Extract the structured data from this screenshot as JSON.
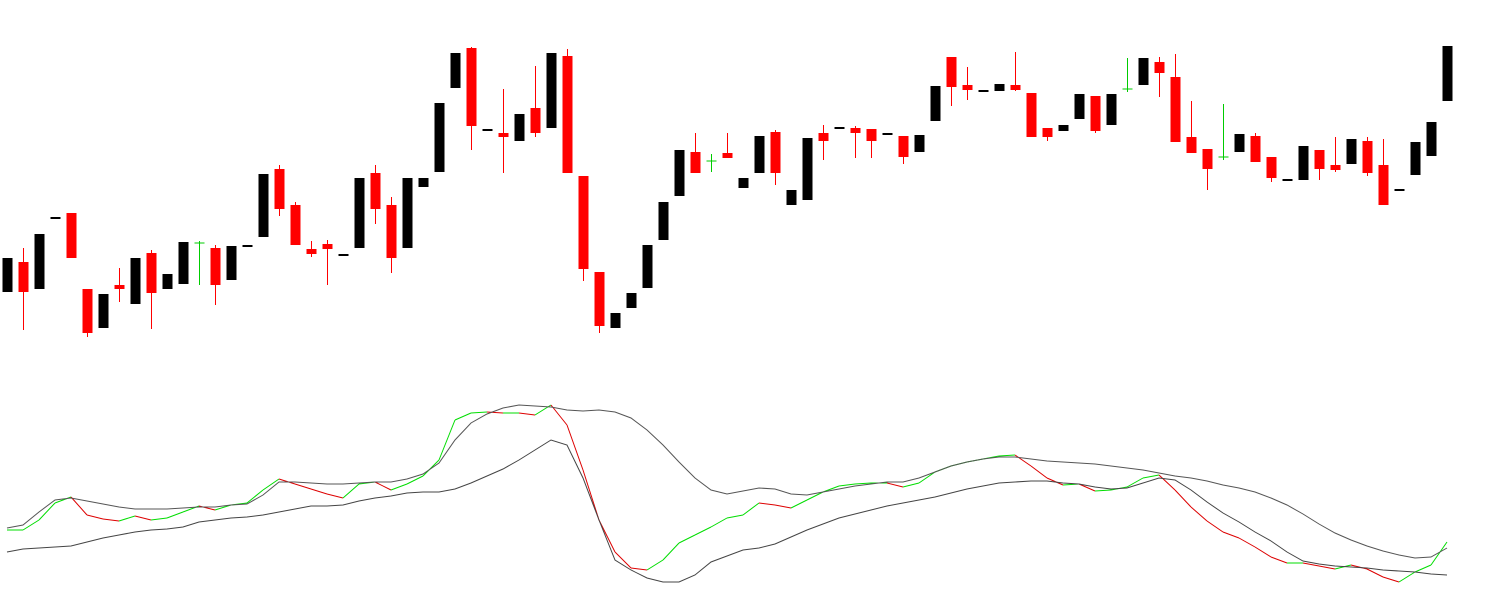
{
  "chart_data": [
    {
      "type": "candlestick",
      "open": [
        308,
        338,
        311,
        381,
        387,
        311,
        272,
        315,
        296,
        347,
        311,
        316,
        357,
        352,
        320,
        353,
        363,
        431,
        395,
        351,
        356,
        344,
        352,
        427,
        395,
        352,
        413,
        428,
        512,
        552,
        469,
        467,
        459,
        492,
        472,
        544,
        424,
        328,
        272,
        292,
        312,
        360,
        404,
        448,
        439,
        447,
        412,
        427,
        468,
        395,
        400,
        467,
        471,
        472,
        471,
        465,
        464,
        448,
        479,
        543,
        515,
        508,
        509,
        515,
        507,
        472,
        469,
        481,
        504,
        475,
        511,
        515,
        538,
        523,
        463,
        451,
        443,
        448,
        464,
        443,
        419,
        420,
        450,
        435,
        436,
        459,
        435,
        409,
        425,
        444,
        499
      ],
      "high": [
        342,
        352,
        366,
        383,
        387,
        311,
        306,
        332,
        342,
        350,
        326,
        358,
        359,
        355,
        354,
        355,
        426,
        435,
        398,
        359,
        360,
        346,
        422,
        435,
        403,
        422,
        422,
        497,
        547,
        553,
        471,
        511,
        486,
        534,
        547,
        551,
        424,
        328,
        287,
        307,
        355,
        398,
        450,
        467,
        446,
        467,
        422,
        464,
        470,
        410,
        462,
        475,
        473,
        474,
        471,
        467,
        464,
        465,
        514,
        543,
        533,
        510,
        516,
        548,
        507,
        472,
        475,
        506,
        504,
        506,
        542,
        542,
        543,
        546,
        499,
        451,
        496,
        466,
        467,
        443,
        421,
        454,
        450,
        463,
        461,
        463,
        461,
        411,
        458,
        478,
        554
      ],
      "low": [
        308,
        270,
        311,
        381,
        342,
        263,
        272,
        298,
        296,
        271,
        311,
        316,
        315,
        295,
        320,
        353,
        363,
        384,
        355,
        343,
        315,
        344,
        352,
        376,
        327,
        352,
        413,
        428,
        512,
        450,
        469,
        427,
        459,
        463,
        472,
        427,
        319,
        267,
        272,
        292,
        312,
        360,
        404,
        427,
        428,
        442,
        412,
        427,
        415,
        395,
        400,
        440,
        471,
        442,
        442,
        465,
        436,
        448,
        479,
        494,
        500,
        508,
        509,
        509,
        463,
        459,
        469,
        481,
        467,
        475,
        508,
        515,
        503,
        458,
        447,
        410,
        440,
        448,
        438,
        418,
        419,
        420,
        420,
        428,
        436,
        424,
        395,
        409,
        425,
        444,
        499
      ],
      "close": [
        342,
        308,
        366,
        383,
        342,
        267,
        306,
        311,
        342,
        307,
        326,
        358,
        357,
        315,
        354,
        355,
        426,
        391,
        355,
        346,
        351,
        346,
        422,
        391,
        342,
        422,
        422,
        497,
        547,
        474,
        471,
        463,
        486,
        467,
        547,
        427,
        331,
        274,
        287,
        307,
        355,
        398,
        450,
        427,
        439,
        442,
        422,
        464,
        427,
        410,
        462,
        459,
        473,
        467,
        459,
        467,
        443,
        465,
        514,
        513,
        510,
        510,
        516,
        510,
        463,
        463,
        475,
        506,
        469,
        506,
        511,
        542,
        527,
        458,
        447,
        431,
        443,
        466,
        438,
        422,
        421,
        454,
        431,
        430,
        461,
        427,
        395,
        411,
        458,
        478,
        554
      ],
      "up_color": "#000000",
      "down_color": "#ff0000",
      "doji_color": "#00cc00",
      "ylim": [
        250,
        570
      ]
    },
    {
      "type": "line",
      "ylim": [
        0,
        200
      ],
      "series": [
        {
          "color": "#00dd00",
          "down_color": "#dd0000",
          "values": [
            70,
            70,
            80,
            97,
            103,
            85,
            81,
            79,
            84,
            80,
            82,
            88,
            94,
            90,
            95,
            97,
            110,
            121,
            116,
            111,
            106,
            102,
            116,
            118,
            110,
            116,
            124,
            140,
            180,
            187,
            188,
            187,
            187,
            185,
            195,
            175,
            130,
            80,
            48,
            32,
            30,
            40,
            57,
            65,
            73,
            82,
            85,
            97,
            95,
            92,
            100,
            108,
            114,
            116,
            117,
            117,
            113,
            117,
            128,
            134,
            138,
            141,
            144,
            145,
            134,
            122,
            115,
            116,
            109,
            110,
            113,
            122,
            125,
            110,
            93,
            79,
            68,
            62,
            53,
            43,
            37,
            37,
            34,
            31,
            35,
            31,
            23,
            18,
            28,
            35,
            58
          ]
        },
        {
          "color": "#555555",
          "values": [
            72,
            75,
            88,
            100,
            102,
            99,
            96,
            93,
            91,
            91,
            91,
            92,
            93,
            93,
            95,
            96,
            105,
            118,
            118,
            117,
            116,
            116,
            117,
            118,
            118,
            121,
            126,
            137,
            160,
            177,
            186,
            192,
            195,
            194,
            193,
            190,
            189,
            190,
            188,
            182,
            170,
            155,
            138,
            122,
            110,
            106,
            109,
            112,
            111,
            106,
            105,
            108,
            111,
            114,
            116,
            118,
            118,
            122,
            128,
            134,
            138,
            141,
            143,
            143,
            141,
            139,
            138,
            137,
            136,
            134,
            132,
            130,
            127,
            124,
            122,
            119,
            115,
            112,
            108,
            102,
            95,
            86,
            76,
            67,
            60,
            54,
            49,
            45,
            42,
            43,
            52
          ]
        },
        {
          "color": "#444444",
          "values": [
            48,
            51,
            52,
            53,
            54,
            58,
            62,
            65,
            68,
            70,
            71,
            73,
            78,
            80,
            82,
            83,
            85,
            88,
            91,
            94,
            94,
            95,
            99,
            102,
            104,
            107,
            108,
            108,
            111,
            117,
            124,
            131,
            140,
            150,
            160,
            155,
            122,
            80,
            40,
            30,
            22,
            18,
            18,
            25,
            38,
            44,
            50,
            52,
            56,
            63,
            70,
            76,
            82,
            86,
            90,
            94,
            97,
            100,
            103,
            107,
            111,
            114,
            117,
            118,
            119,
            119,
            117,
            116,
            113,
            111,
            112,
            117,
            122,
            120,
            110,
            98,
            87,
            78,
            68,
            59,
            48,
            39,
            36,
            34,
            33,
            32,
            30,
            29,
            28,
            26,
            25
          ]
        }
      ]
    }
  ]
}
